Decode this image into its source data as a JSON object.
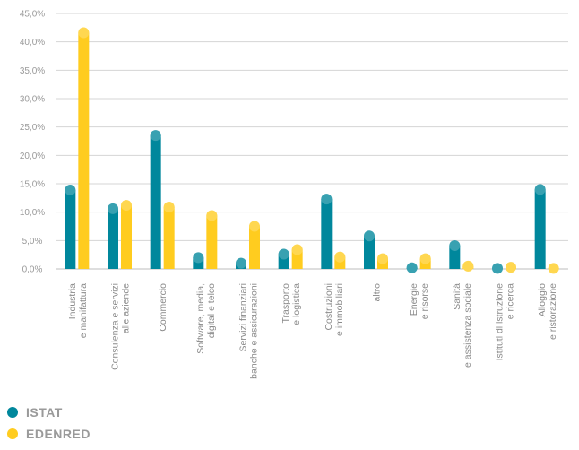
{
  "chart_data": {
    "type": "bar",
    "categories": [
      [
        "Industria",
        "e manifattura"
      ],
      [
        "Consulenza e servizi",
        "alle aziende"
      ],
      [
        "Commercio"
      ],
      [
        "Software, media,",
        "digital e telco"
      ],
      [
        "Servizi finanziari",
        "banche e assicurazioni"
      ],
      [
        "Trasporto",
        "e logistica"
      ],
      [
        "Costruzioni",
        "e immobiliari"
      ],
      [
        "altro"
      ],
      [
        "Energie",
        "e risorse"
      ],
      [
        "Sanità",
        "e assistenza sociale"
      ],
      [
        "Istituti di istruzione",
        "e ricerca"
      ],
      [
        "Alloggio",
        "e ristorazione"
      ]
    ],
    "series": [
      {
        "name": "ISTAT",
        "color": "#00879c",
        "values": [
          13.9,
          10.6,
          23.5,
          2.0,
          1.0,
          2.6,
          12.3,
          5.8,
          0.2,
          4.1,
          0.1,
          14.0
        ]
      },
      {
        "name": "EDENRED",
        "color": "#ffcc1f",
        "values": [
          41.6,
          11.2,
          10.9,
          9.4,
          7.5,
          3.4,
          2.1,
          1.8,
          1.8,
          0.5,
          0.3,
          0.1
        ]
      }
    ],
    "yticks": [
      "0,0%",
      "5,0%",
      "10,0%",
      "15,0%",
      "20,0%",
      "25,0%",
      "30,0%",
      "35,0%",
      "40,0%",
      "45,0%"
    ],
    "ylim": [
      0,
      45
    ],
    "grid": true,
    "legend": "bottom-left"
  }
}
